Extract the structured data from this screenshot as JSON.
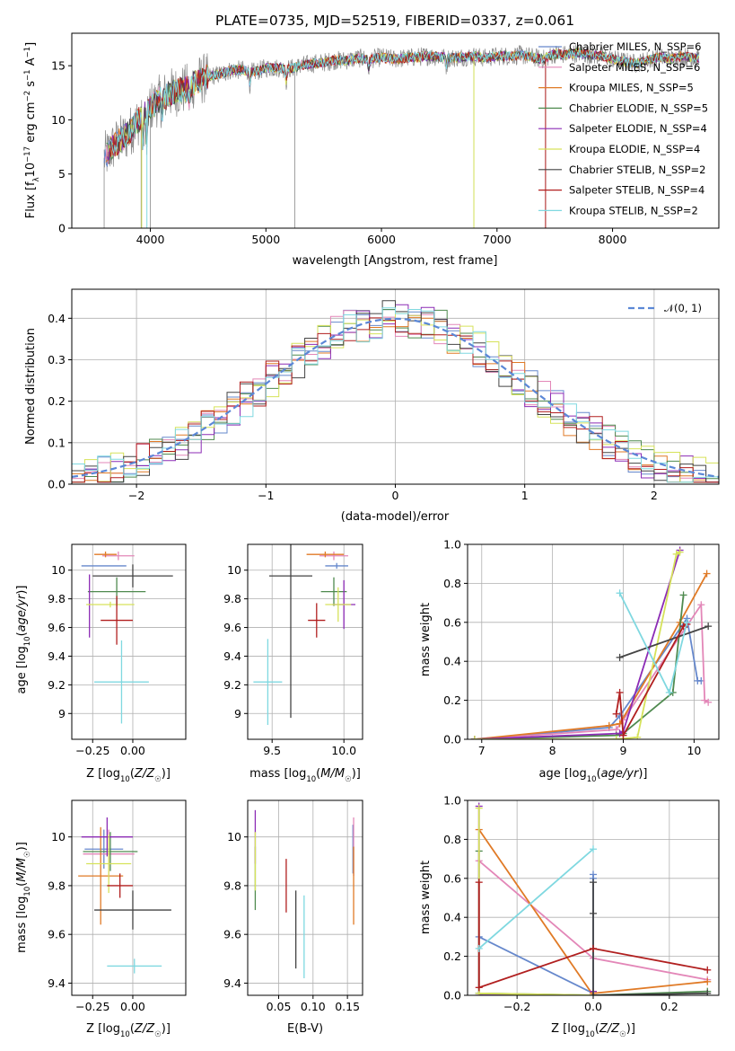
{
  "chart_data": [
    {
      "type": "line",
      "title": "PLATE=0735, MJD=52519, FIBERID=0337, z=0.061",
      "xlabel": "wavelength [Angstrom, rest frame]",
      "ylabel": "Flux [fλ10⁻¹⁷ erg cm⁻² s⁻¹ A⁻¹]",
      "xlim": [
        3320,
        8920
      ],
      "ylim": [
        0,
        18
      ],
      "xticks": [
        4000,
        5000,
        6000,
        7000,
        8000
      ],
      "yticks": [
        0,
        5,
        10,
        15
      ],
      "legend_position": "right",
      "legend": [
        {
          "label": "Chabrier MILES, N_SSP=6",
          "color": "#6688cc"
        },
        {
          "label": "Salpeter MILES, N_SSP=6",
          "color": "#e387b8"
        },
        {
          "label": "Kroupa MILES, N_SSP=5",
          "color": "#e07a26"
        },
        {
          "label": "Chabrier ELODIE, N_SSP=5",
          "color": "#4f8a4f"
        },
        {
          "label": "Salpeter ELODIE, N_SSP=4",
          "color": "#8c2bb5"
        },
        {
          "label": "Kroupa ELODIE, N_SSP=4",
          "color": "#d6e25a"
        },
        {
          "label": "Chabrier STELIB, N_SSP=2",
          "color": "#444444"
        },
        {
          "label": "Salpeter STELIB, N_SSP=4",
          "color": "#b11f1f"
        },
        {
          "label": "Kroupa STELIB, N_SSP=2",
          "color": "#7fd8e0"
        }
      ],
      "continuum_points": [
        [
          3600,
          6.5
        ],
        [
          3700,
          7.8
        ],
        [
          3800,
          8.6
        ],
        [
          3900,
          10.0
        ],
        [
          4000,
          11.2
        ],
        [
          4100,
          12.0
        ],
        [
          4200,
          12.6
        ],
        [
          4300,
          12.8
        ],
        [
          4400,
          13.5
        ],
        [
          4500,
          14.0
        ],
        [
          4600,
          14.2
        ],
        [
          4700,
          14.6
        ],
        [
          4800,
          14.6
        ],
        [
          4900,
          14.4
        ],
        [
          5000,
          14.8
        ],
        [
          5100,
          14.8
        ],
        [
          5200,
          14.7
        ],
        [
          5300,
          15.0
        ],
        [
          5400,
          15.2
        ],
        [
          5500,
          15.3
        ],
        [
          5600,
          15.5
        ],
        [
          5700,
          15.5
        ],
        [
          5800,
          15.7
        ],
        [
          5900,
          15.6
        ],
        [
          6000,
          15.8
        ],
        [
          6100,
          15.6
        ],
        [
          6200,
          15.7
        ],
        [
          6300,
          15.8
        ],
        [
          6400,
          15.9
        ],
        [
          6500,
          15.8
        ],
        [
          6600,
          15.7
        ],
        [
          6700,
          15.8
        ],
        [
          6800,
          15.9
        ],
        [
          6900,
          15.7
        ],
        [
          7000,
          15.9
        ],
        [
          7100,
          15.9
        ],
        [
          7200,
          16.0
        ],
        [
          7300,
          15.8
        ],
        [
          7400,
          15.6
        ],
        [
          7500,
          16.1
        ],
        [
          7600,
          16.0
        ],
        [
          7700,
          16.2
        ],
        [
          7800,
          16.0
        ],
        [
          7900,
          15.9
        ],
        [
          8000,
          15.6
        ],
        [
          8100,
          15.4
        ],
        [
          8200,
          15.2
        ],
        [
          8300,
          15.5
        ],
        [
          8400,
          15.8
        ],
        [
          8500,
          15.6
        ],
        [
          8600,
          15.9
        ],
        [
          8700,
          15.7
        ]
      ],
      "data_spikes": [
        [
          3600,
          0
        ],
        [
          3920,
          0
        ],
        [
          4000,
          0
        ],
        [
          5250,
          0
        ],
        [
          6800,
          0
        ],
        [
          7420,
          0
        ]
      ]
    },
    {
      "type": "bar",
      "xlabel": "(data-model)/error",
      "ylabel": "Normed distribution",
      "xlim": [
        -2.5,
        2.5
      ],
      "ylim": [
        0,
        0.47
      ],
      "xticks": [
        -2,
        -1,
        0,
        1,
        2
      ],
      "yticks": [
        0.0,
        0.1,
        0.2,
        0.3,
        0.4
      ],
      "legend": [
        {
          "label": "𝒩(0, 1)",
          "color": "#5b87d6"
        }
      ],
      "gaussian_curve": {
        "mean": 0,
        "sigma": 1,
        "style": "dashed"
      },
      "histogram_bin_edges_start": -2.5,
      "histogram_bin_width": 0.1,
      "histogram_bin_count": 50
    },
    {
      "type": "scatter",
      "xlabel": "Z [log₁₀(Z/Z☉)]",
      "ylabel": "age  [log₁₀(age/yr)]",
      "xlim": [
        -0.38,
        0.33
      ],
      "ylim": [
        8.82,
        10.18
      ],
      "xticks": [
        -0.25,
        0.0
      ],
      "xticklabels": [
        "−0.25",
        "0.00"
      ],
      "yticks": [
        9.0,
        9.2,
        9.4,
        9.6,
        9.8,
        10.0
      ],
      "points": [
        {
          "x": -0.18,
          "y": 10.03,
          "xerr": 0.14,
          "yerr": 0.0,
          "color": "#6688cc"
        },
        {
          "x": -0.09,
          "y": 10.1,
          "xerr": 0.1,
          "yerr": 0.03,
          "color": "#e387b8"
        },
        {
          "x": -0.17,
          "y": 10.11,
          "xerr": 0.07,
          "yerr": 0.02,
          "color": "#e07a26"
        },
        {
          "x": -0.1,
          "y": 9.85,
          "xerr": 0.18,
          "yerr": 0.1,
          "color": "#4f8a4f"
        },
        {
          "x": -0.27,
          "y": 9.75,
          "xerr": 0.0,
          "yerr": 0.22,
          "color": "#8c2bb5"
        },
        {
          "x": -0.14,
          "y": 9.76,
          "xerr": 0.15,
          "yerr": 0.02,
          "color": "#d6e25a"
        },
        {
          "x": 0.0,
          "y": 9.96,
          "xerr": 0.25,
          "yerr": 0.08,
          "color": "#444444"
        },
        {
          "x": -0.1,
          "y": 9.65,
          "xerr": 0.1,
          "yerr": 0.17,
          "color": "#b11f1f"
        },
        {
          "x": -0.07,
          "y": 9.22,
          "xerr": 0.17,
          "yerr": 0.29,
          "color": "#7fd8e0"
        }
      ]
    },
    {
      "type": "scatter",
      "xlabel": "mass [log₁₀(M/M☉)]",
      "ylabel": "",
      "xlim": [
        9.33,
        10.13
      ],
      "ylim": [
        8.82,
        10.18
      ],
      "xticks": [
        9.5,
        10.0
      ],
      "xticklabels": [
        "9.5",
        "10.0"
      ],
      "yticks": [
        9.0,
        9.2,
        9.4,
        9.6,
        9.8,
        10.0
      ],
      "points": [
        {
          "x": 9.95,
          "y": 10.03,
          "xerr": 0.08,
          "yerr": 0.02,
          "color": "#6688cc"
        },
        {
          "x": 9.93,
          "y": 10.1,
          "xerr": 0.1,
          "yerr": 0.03,
          "color": "#e387b8"
        },
        {
          "x": 9.87,
          "y": 10.11,
          "xerr": 0.13,
          "yerr": 0.02,
          "color": "#e07a26"
        },
        {
          "x": 9.93,
          "y": 9.85,
          "xerr": 0.09,
          "yerr": 0.1,
          "color": "#4f8a4f"
        },
        {
          "x": 10.0,
          "y": 9.76,
          "xerr": 0.08,
          "yerr": 0.17,
          "color": "#8c2bb5"
        },
        {
          "x": 9.96,
          "y": 9.76,
          "xerr": 0.09,
          "yerr": 0.12,
          "color": "#d6e25a"
        },
        {
          "x": 9.63,
          "y": 9.96,
          "xerr": 0.15,
          "yerr": 0.99,
          "color": "#444444"
        },
        {
          "x": 9.81,
          "y": 9.65,
          "xerr": 0.06,
          "yerr": 0.12,
          "color": "#b11f1f"
        },
        {
          "x": 9.47,
          "y": 9.22,
          "xerr": 0.1,
          "yerr": 0.3,
          "color": "#7fd8e0"
        }
      ]
    },
    {
      "type": "line",
      "xlabel": "age  [log₁₀(age/yr)]",
      "ylabel": "mass weight",
      "xlim": [
        6.8,
        10.35
      ],
      "ylim": [
        0,
        1.0
      ],
      "xticks": [
        7,
        8,
        9,
        10
      ],
      "yticks": [
        0.0,
        0.2,
        0.4,
        0.6,
        0.8,
        1.0
      ],
      "series": [
        {
          "color": "#6688cc",
          "x": [
            6.9,
            8.8,
            8.95,
            9.9,
            10.05,
            10.1
          ],
          "y": [
            0.0,
            0.06,
            0.12,
            0.62,
            0.3,
            0.3
          ]
        },
        {
          "color": "#e387b8",
          "x": [
            6.9,
            8.9,
            9.0,
            10.1,
            10.15,
            10.2
          ],
          "y": [
            0.0,
            0.05,
            0.1,
            0.69,
            0.2,
            0.19
          ]
        },
        {
          "color": "#e07a26",
          "x": [
            6.9,
            8.8,
            8.95,
            9.8,
            10.18
          ],
          "y": [
            0.0,
            0.07,
            0.08,
            0.6,
            0.85
          ]
        },
        {
          "color": "#4f8a4f",
          "x": [
            6.9,
            8.9,
            9.0,
            9.7,
            9.85
          ],
          "y": [
            0.0,
            0.02,
            0.03,
            0.24,
            0.74
          ]
        },
        {
          "color": "#8c2bb5",
          "x": [
            6.9,
            8.95,
            9.0,
            9.8
          ],
          "y": [
            0.0,
            0.03,
            0.04,
            0.97
          ]
        },
        {
          "color": "#d6e25a",
          "x": [
            6.9,
            8.9,
            9.2,
            9.75,
            9.8
          ],
          "y": [
            0.0,
            0.0,
            0.01,
            0.95,
            0.96
          ]
        },
        {
          "color": "#444444",
          "x": [
            8.95,
            10.2
          ],
          "y": [
            0.42,
            0.58
          ]
        },
        {
          "color": "#b11f1f",
          "x": [
            8.9,
            8.95,
            9.0,
            9.85,
            9.9
          ],
          "y": [
            0.13,
            0.24,
            0.02,
            0.58,
            0.59
          ]
        },
        {
          "color": "#7fd8e0",
          "x": [
            8.95,
            9.65,
            9.9
          ],
          "y": [
            0.75,
            0.24,
            0.6
          ]
        }
      ]
    },
    {
      "type": "scatter",
      "xlabel": "Z [log₁₀(Z/Z☉)]",
      "ylabel": "mass [log₁₀(M/M☉)]",
      "xlim": [
        -0.38,
        0.33
      ],
      "ylim": [
        9.35,
        10.15
      ],
      "xticks": [
        -0.25,
        0.0
      ],
      "xticklabels": [
        "−0.25",
        "0.00"
      ],
      "yticks": [
        9.4,
        9.6,
        9.8,
        10.0
      ],
      "points": [
        {
          "x": -0.18,
          "y": 9.95,
          "xerr": 0.12,
          "yerr": 0.08,
          "color": "#6688cc"
        },
        {
          "x": -0.15,
          "y": 9.93,
          "xerr": 0.16,
          "yerr": 0.1,
          "color": "#e387b8"
        },
        {
          "x": -0.2,
          "y": 9.84,
          "xerr": 0.14,
          "yerr": 0.2,
          "color": "#e07a26"
        },
        {
          "x": -0.14,
          "y": 9.94,
          "xerr": 0.17,
          "yerr": 0.08,
          "color": "#4f8a4f"
        },
        {
          "x": -0.16,
          "y": 10.0,
          "xerr": 0.16,
          "yerr": 0.08,
          "color": "#8c2bb5"
        },
        {
          "x": -0.15,
          "y": 9.89,
          "xerr": 0.14,
          "yerr": 0.12,
          "color": "#d6e25a"
        },
        {
          "x": 0.0,
          "y": 9.7,
          "xerr": 0.24,
          "yerr": 0.08,
          "color": "#444444"
        },
        {
          "x": -0.08,
          "y": 9.8,
          "xerr": 0.08,
          "yerr": 0.05,
          "color": "#b11f1f"
        },
        {
          "x": 0.01,
          "y": 9.47,
          "xerr": 0.17,
          "yerr": 0.03,
          "color": "#7fd8e0"
        }
      ]
    },
    {
      "type": "scatter",
      "xlabel": "E(B-V)",
      "ylabel": "",
      "xlim": [
        0.005,
        0.172
      ],
      "ylim": [
        9.35,
        10.15
      ],
      "xticks": [
        0.05,
        0.1,
        0.15
      ],
      "xticklabels": [
        "0.05",
        "0.10",
        "0.15"
      ],
      "yticks": [
        9.4,
        9.6,
        9.8,
        10.0
      ],
      "points": [
        {
          "x": 0.158,
          "y": 9.95,
          "xerr": 0,
          "yerr": 0.1,
          "color": "#6688cc"
        },
        {
          "x": 0.159,
          "y": 9.96,
          "xerr": 0,
          "yerr": 0.12,
          "color": "#e387b8"
        },
        {
          "x": 0.159,
          "y": 9.8,
          "xerr": 0,
          "yerr": 0.16,
          "color": "#e07a26"
        },
        {
          "x": 0.016,
          "y": 9.83,
          "xerr": 0,
          "yerr": 0.13,
          "color": "#4f8a4f"
        },
        {
          "x": 0.016,
          "y": 10.0,
          "xerr": 0,
          "yerr": 0.11,
          "color": "#8c2bb5"
        },
        {
          "x": 0.016,
          "y": 9.9,
          "xerr": 0,
          "yerr": 0.12,
          "color": "#d6e25a"
        },
        {
          "x": 0.075,
          "y": 9.62,
          "xerr": 0,
          "yerr": 0.16,
          "color": "#444444"
        },
        {
          "x": 0.061,
          "y": 9.8,
          "xerr": 0,
          "yerr": 0.11,
          "color": "#b11f1f"
        },
        {
          "x": 0.087,
          "y": 9.59,
          "xerr": 0,
          "yerr": 0.17,
          "color": "#7fd8e0"
        }
      ]
    },
    {
      "type": "line",
      "xlabel": "Z [log₁₀(Z/Z☉)]",
      "ylabel": "mass weight",
      "xlim": [
        -0.33,
        0.33
      ],
      "ylim": [
        0,
        1.0
      ],
      "xticks": [
        -0.2,
        0.0,
        0.2
      ],
      "xticklabels": [
        "−0.2",
        "0.0",
        "0.2"
      ],
      "yticks": [
        0.0,
        0.2,
        0.4,
        0.6,
        0.8,
        1.0
      ],
      "series": [
        {
          "color": "#6688cc",
          "x": [
            -0.3,
            -0.3,
            0.0,
            0.0,
            0.0
          ],
          "y": [
            0.01,
            0.3,
            0.01,
            0.6,
            0.62
          ]
        },
        {
          "color": "#e387b8",
          "x": [
            -0.3,
            0.0,
            0.3
          ],
          "y": [
            0.69,
            0.19,
            0.08
          ]
        },
        {
          "color": "#e07a26",
          "x": [
            -0.3,
            0.0,
            0.0,
            0.3
          ],
          "y": [
            0.85,
            0.0,
            0.01,
            0.07
          ]
        },
        {
          "color": "#4f8a4f",
          "x": [
            -0.3,
            -0.3,
            0.0,
            0.3
          ],
          "y": [
            0.74,
            0.01,
            0.0,
            0.02
          ]
        },
        {
          "color": "#8c2bb5",
          "x": [
            -0.3,
            -0.3,
            0.0,
            0.0
          ],
          "y": [
            0.97,
            0.0,
            0.0,
            0.02
          ]
        },
        {
          "color": "#d6e25a",
          "x": [
            -0.3,
            -0.3,
            0.0
          ],
          "y": [
            0.96,
            0.01,
            0.0
          ]
        },
        {
          "color": "#444444",
          "x": [
            0.0,
            0.0,
            0.0,
            0.3
          ],
          "y": [
            0.58,
            0.42,
            0.0,
            0.01
          ]
        },
        {
          "color": "#b11f1f",
          "x": [
            -0.3,
            -0.3,
            0.0,
            0.3
          ],
          "y": [
            0.58,
            0.04,
            0.24,
            0.13
          ]
        },
        {
          "color": "#7fd8e0",
          "x": [
            -0.3,
            0.0
          ],
          "y": [
            0.24,
            0.75
          ]
        }
      ]
    }
  ]
}
